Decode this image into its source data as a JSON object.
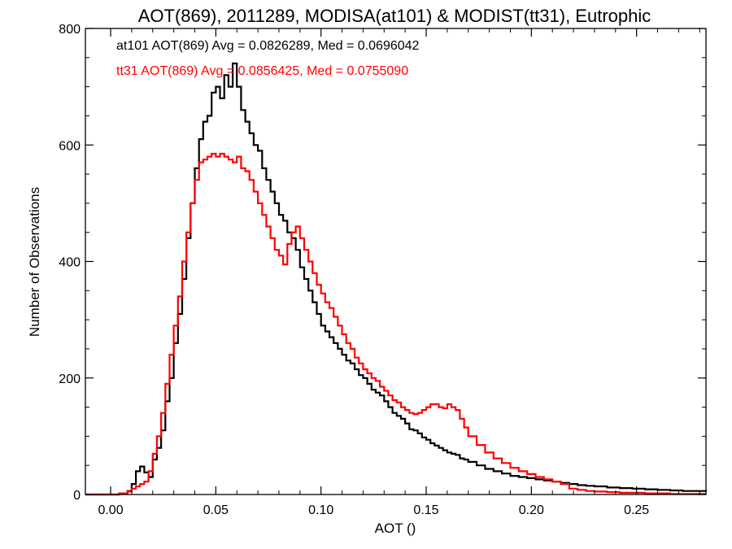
{
  "chart_data": {
    "type": "line",
    "title": "AOT(869), 2011289, MODISA(at101) & MODIST(tt31), Eutrophic",
    "xlabel": "AOT ()",
    "ylabel": "Number of Observations",
    "xlim": [
      -0.012,
      0.283
    ],
    "ylim": [
      0,
      800
    ],
    "xticks": [
      0.0,
      0.05,
      0.1,
      0.15,
      0.2,
      0.25
    ],
    "xtick_labels": [
      "0.00",
      "0.05",
      "0.10",
      "0.15",
      "0.20",
      "0.25"
    ],
    "yticks": [
      0,
      200,
      400,
      600,
      800
    ],
    "ytick_labels": [
      "0",
      "200",
      "400",
      "600",
      "800"
    ],
    "step": "histogram",
    "grid": false,
    "legend": "top-left",
    "series": [
      {
        "name": "at101",
        "color": "#000000",
        "stats": "at101 AOT(869) Avg = 0.0826289, Med = 0.0696042",
        "points": [
          [
            -0.012,
            0
          ],
          [
            0.0,
            0
          ],
          [
            0.004,
            2
          ],
          [
            0.008,
            6
          ],
          [
            0.01,
            18
          ],
          [
            0.012,
            40
          ],
          [
            0.014,
            48
          ],
          [
            0.016,
            38
          ],
          [
            0.018,
            30
          ],
          [
            0.02,
            60
          ],
          [
            0.022,
            80
          ],
          [
            0.024,
            110
          ],
          [
            0.026,
            160
          ],
          [
            0.028,
            200
          ],
          [
            0.03,
            260
          ],
          [
            0.032,
            310
          ],
          [
            0.034,
            370
          ],
          [
            0.036,
            440
          ],
          [
            0.038,
            500
          ],
          [
            0.04,
            560
          ],
          [
            0.042,
            610
          ],
          [
            0.044,
            640
          ],
          [
            0.046,
            650
          ],
          [
            0.048,
            690
          ],
          [
            0.05,
            700
          ],
          [
            0.052,
            680
          ],
          [
            0.054,
            720
          ],
          [
            0.056,
            700
          ],
          [
            0.058,
            740
          ],
          [
            0.06,
            700
          ],
          [
            0.062,
            660
          ],
          [
            0.064,
            640
          ],
          [
            0.066,
            620
          ],
          [
            0.068,
            600
          ],
          [
            0.07,
            590
          ],
          [
            0.072,
            560
          ],
          [
            0.074,
            540
          ],
          [
            0.076,
            520
          ],
          [
            0.078,
            500
          ],
          [
            0.08,
            480
          ],
          [
            0.082,
            470
          ],
          [
            0.084,
            450
          ],
          [
            0.086,
            440
          ],
          [
            0.088,
            420
          ],
          [
            0.09,
            390
          ],
          [
            0.092,
            370
          ],
          [
            0.094,
            350
          ],
          [
            0.096,
            330
          ],
          [
            0.098,
            310
          ],
          [
            0.1,
            290
          ],
          [
            0.102,
            280
          ],
          [
            0.104,
            270
          ],
          [
            0.106,
            260
          ],
          [
            0.108,
            250
          ],
          [
            0.11,
            240
          ],
          [
            0.112,
            230
          ],
          [
            0.114,
            225
          ],
          [
            0.116,
            215
          ],
          [
            0.118,
            205
          ],
          [
            0.12,
            200
          ],
          [
            0.122,
            190
          ],
          [
            0.124,
            180
          ],
          [
            0.126,
            175
          ],
          [
            0.128,
            170
          ],
          [
            0.13,
            160
          ],
          [
            0.132,
            150
          ],
          [
            0.134,
            140
          ],
          [
            0.136,
            135
          ],
          [
            0.138,
            130
          ],
          [
            0.14,
            122
          ],
          [
            0.142,
            112
          ],
          [
            0.144,
            110
          ],
          [
            0.146,
            105
          ],
          [
            0.148,
            98
          ],
          [
            0.15,
            94
          ],
          [
            0.152,
            88
          ],
          [
            0.154,
            84
          ],
          [
            0.156,
            80
          ],
          [
            0.158,
            76
          ],
          [
            0.16,
            72
          ],
          [
            0.162,
            70
          ],
          [
            0.164,
            68
          ],
          [
            0.166,
            62
          ],
          [
            0.168,
            60
          ],
          [
            0.17,
            56
          ],
          [
            0.174,
            50
          ],
          [
            0.178,
            44
          ],
          [
            0.182,
            40
          ],
          [
            0.186,
            36
          ],
          [
            0.19,
            32
          ],
          [
            0.194,
            30
          ],
          [
            0.198,
            28
          ],
          [
            0.202,
            26
          ],
          [
            0.206,
            24
          ],
          [
            0.21,
            22
          ],
          [
            0.214,
            20
          ],
          [
            0.218,
            18
          ],
          [
            0.222,
            16
          ],
          [
            0.226,
            15
          ],
          [
            0.23,
            14
          ],
          [
            0.236,
            12
          ],
          [
            0.242,
            11
          ],
          [
            0.248,
            10
          ],
          [
            0.254,
            9
          ],
          [
            0.26,
            8
          ],
          [
            0.266,
            7
          ],
          [
            0.272,
            6
          ],
          [
            0.278,
            6
          ],
          [
            0.283,
            5
          ]
        ]
      },
      {
        "name": "tt31",
        "color": "#ff0000",
        "stats": "tt31 AOT(869) Avg = 0.0856425, Med = 0.0755090",
        "points": [
          [
            -0.012,
            0
          ],
          [
            0.0,
            0
          ],
          [
            0.004,
            2
          ],
          [
            0.008,
            5
          ],
          [
            0.01,
            10
          ],
          [
            0.012,
            14
          ],
          [
            0.014,
            18
          ],
          [
            0.016,
            22
          ],
          [
            0.018,
            40
          ],
          [
            0.02,
            70
          ],
          [
            0.022,
            100
          ],
          [
            0.024,
            140
          ],
          [
            0.026,
            190
          ],
          [
            0.028,
            240
          ],
          [
            0.03,
            290
          ],
          [
            0.032,
            340
          ],
          [
            0.034,
            400
          ],
          [
            0.036,
            450
          ],
          [
            0.038,
            500
          ],
          [
            0.04,
            540
          ],
          [
            0.042,
            570
          ],
          [
            0.044,
            575
          ],
          [
            0.046,
            580
          ],
          [
            0.048,
            585
          ],
          [
            0.05,
            580
          ],
          [
            0.052,
            585
          ],
          [
            0.054,
            580
          ],
          [
            0.056,
            575
          ],
          [
            0.058,
            570
          ],
          [
            0.06,
            580
          ],
          [
            0.062,
            560
          ],
          [
            0.064,
            555
          ],
          [
            0.066,
            540
          ],
          [
            0.068,
            520
          ],
          [
            0.07,
            500
          ],
          [
            0.072,
            480
          ],
          [
            0.074,
            460
          ],
          [
            0.076,
            440
          ],
          [
            0.078,
            420
          ],
          [
            0.08,
            410
          ],
          [
            0.082,
            395
          ],
          [
            0.084,
            430
          ],
          [
            0.086,
            450
          ],
          [
            0.088,
            460
          ],
          [
            0.09,
            440
          ],
          [
            0.092,
            420
          ],
          [
            0.094,
            400
          ],
          [
            0.096,
            380
          ],
          [
            0.098,
            360
          ],
          [
            0.1,
            345
          ],
          [
            0.102,
            330
          ],
          [
            0.104,
            320
          ],
          [
            0.106,
            305
          ],
          [
            0.108,
            290
          ],
          [
            0.11,
            275
          ],
          [
            0.112,
            260
          ],
          [
            0.114,
            250
          ],
          [
            0.116,
            235
          ],
          [
            0.118,
            225
          ],
          [
            0.12,
            215
          ],
          [
            0.122,
            208
          ],
          [
            0.124,
            200
          ],
          [
            0.126,
            195
          ],
          [
            0.128,
            185
          ],
          [
            0.13,
            178
          ],
          [
            0.132,
            170
          ],
          [
            0.134,
            162
          ],
          [
            0.136,
            158
          ],
          [
            0.138,
            150
          ],
          [
            0.14,
            145
          ],
          [
            0.142,
            140
          ],
          [
            0.144,
            138
          ],
          [
            0.146,
            140
          ],
          [
            0.148,
            145
          ],
          [
            0.15,
            150
          ],
          [
            0.152,
            155
          ],
          [
            0.154,
            155
          ],
          [
            0.156,
            150
          ],
          [
            0.158,
            148
          ],
          [
            0.16,
            155
          ],
          [
            0.162,
            150
          ],
          [
            0.164,
            145
          ],
          [
            0.166,
            130
          ],
          [
            0.168,
            115
          ],
          [
            0.17,
            100
          ],
          [
            0.174,
            85
          ],
          [
            0.178,
            72
          ],
          [
            0.182,
            62
          ],
          [
            0.186,
            54
          ],
          [
            0.19,
            46
          ],
          [
            0.194,
            40
          ],
          [
            0.198,
            35
          ],
          [
            0.202,
            30
          ],
          [
            0.206,
            26
          ],
          [
            0.21,
            22
          ],
          [
            0.214,
            18
          ],
          [
            0.218,
            10
          ],
          [
            0.222,
            8
          ],
          [
            0.226,
            6
          ],
          [
            0.23,
            5
          ],
          [
            0.236,
            4
          ],
          [
            0.242,
            3
          ],
          [
            0.248,
            3
          ],
          [
            0.254,
            2
          ],
          [
            0.26,
            2
          ],
          [
            0.266,
            1
          ],
          [
            0.272,
            1
          ],
          [
            0.278,
            1
          ],
          [
            0.283,
            1
          ]
        ]
      }
    ]
  }
}
